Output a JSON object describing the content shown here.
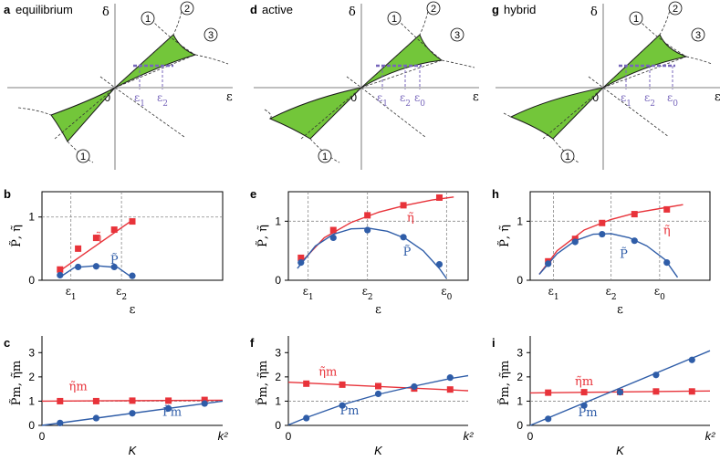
{
  "colors": {
    "red": "#e8333a",
    "blue": "#2f5da8",
    "green": "#73c63a",
    "purple": "#7766bb",
    "grid": "#888888",
    "axis": "#999999"
  },
  "phase_panels": [
    {
      "letter": "a",
      "title": "equilibrium",
      "delta_label": "δ",
      "eps_label": "ε",
      "origin": "0",
      "eps_ticks": [
        "ε1",
        "ε2"
      ],
      "curve_labels": [
        "1",
        "2",
        "3",
        "1"
      ]
    },
    {
      "letter": "d",
      "title": "active",
      "delta_label": "δ",
      "eps_label": "ε",
      "origin": "0",
      "eps_ticks": [
        "ε1",
        "ε2",
        "ε0"
      ],
      "curve_labels": [
        "1",
        "2",
        "3",
        "1"
      ]
    },
    {
      "letter": "g",
      "title": "hybrid",
      "delta_label": "δ",
      "eps_label": "ε",
      "origin": "0",
      "eps_ticks": [
        "ε1",
        "ε2",
        "ε0"
      ],
      "curve_labels": [
        "1",
        "2",
        "3",
        "1"
      ]
    }
  ],
  "chart_data": [
    {
      "panel": "b",
      "type": "scatter",
      "xlabel": "ε",
      "ylabel": "P̃, η̃",
      "ylim": [
        0,
        1.4
      ],
      "yticks": [
        "0",
        "1"
      ],
      "xticks": [
        "ε1",
        "ε2"
      ],
      "xrange": [
        0,
        1
      ],
      "series": [
        {
          "name": "η̃",
          "color": "red",
          "marker": "square",
          "x": [
            0.1,
            0.2,
            0.3,
            0.4,
            0.5
          ],
          "y": [
            0.17,
            0.5,
            0.67,
            0.8,
            0.93
          ],
          "fit_x": [
            0.1,
            0.5
          ],
          "fit_y": [
            0.15,
            0.95
          ]
        },
        {
          "name": "P̃",
          "color": "blue",
          "marker": "circle",
          "x": [
            0.1,
            0.2,
            0.3,
            0.4,
            0.5
          ],
          "y": [
            0.08,
            0.21,
            0.22,
            0.21,
            0.07
          ],
          "fit_x": [
            0.1,
            0.18,
            0.3,
            0.42,
            0.5
          ],
          "fit_y": [
            0.05,
            0.2,
            0.23,
            0.2,
            0.04
          ]
        }
      ]
    },
    {
      "panel": "e",
      "type": "scatter",
      "xlabel": "ε",
      "ylabel": "P̃, η̃",
      "ylim": [
        0,
        1.5
      ],
      "yticks": [
        "0",
        "1"
      ],
      "xticks": [
        "ε1",
        "ε2",
        "ε0"
      ],
      "xrange": [
        0,
        1
      ],
      "series": [
        {
          "name": "η̃",
          "color": "red",
          "marker": "square",
          "x": [
            0.07,
            0.25,
            0.44,
            0.64,
            0.84
          ],
          "y": [
            0.38,
            0.85,
            1.1,
            1.27,
            1.4
          ],
          "fit_x": [
            0.07,
            0.2,
            0.35,
            0.5,
            0.65,
            0.8,
            0.92
          ],
          "fit_y": [
            0.3,
            0.72,
            0.98,
            1.15,
            1.27,
            1.36,
            1.41
          ]
        },
        {
          "name": "P̃",
          "color": "blue",
          "marker": "circle",
          "x": [
            0.07,
            0.25,
            0.44,
            0.64,
            0.84
          ],
          "y": [
            0.3,
            0.72,
            0.85,
            0.73,
            0.27
          ],
          "fit_x": [
            0.05,
            0.15,
            0.25,
            0.35,
            0.45,
            0.55,
            0.65,
            0.75,
            0.84,
            0.88
          ],
          "fit_y": [
            0.2,
            0.58,
            0.78,
            0.87,
            0.88,
            0.83,
            0.71,
            0.5,
            0.2,
            0.03
          ]
        }
      ]
    },
    {
      "panel": "h",
      "type": "scatter",
      "xlabel": "ε",
      "ylabel": "P̃, η̃",
      "ylim": [
        0,
        1.5
      ],
      "yticks": [
        "0",
        "1"
      ],
      "xticks": [
        "ε1",
        "ε2",
        "ε0"
      ],
      "xrange": [
        0,
        1
      ],
      "series": [
        {
          "name": "η̃",
          "color": "red",
          "marker": "square",
          "x": [
            0.1,
            0.25,
            0.4,
            0.58,
            0.76
          ],
          "y": [
            0.32,
            0.7,
            0.97,
            1.12,
            1.2
          ],
          "fit_x": [
            0.05,
            0.15,
            0.3,
            0.45,
            0.6,
            0.75,
            0.85
          ],
          "fit_y": [
            0.1,
            0.5,
            0.85,
            1.03,
            1.15,
            1.23,
            1.28
          ]
        },
        {
          "name": "P̃",
          "color": "blue",
          "marker": "circle",
          "x": [
            0.1,
            0.25,
            0.4,
            0.58,
            0.76
          ],
          "y": [
            0.28,
            0.65,
            0.78,
            0.67,
            0.3
          ],
          "fit_x": [
            0.05,
            0.15,
            0.25,
            0.35,
            0.45,
            0.55,
            0.65,
            0.75,
            0.82
          ],
          "fit_y": [
            0.1,
            0.45,
            0.67,
            0.78,
            0.79,
            0.72,
            0.58,
            0.35,
            0.05
          ]
        }
      ]
    },
    {
      "panel": "c",
      "type": "scatter",
      "xlabel": "K",
      "ylabel": "P̃m, η̃m",
      "ylim": [
        0,
        3.5
      ],
      "yticks": [
        "0",
        "1",
        "2",
        "3"
      ],
      "xticks_left": "0",
      "xticks_right": "k²",
      "xrange": [
        0,
        1
      ],
      "ref_y": 1,
      "series": [
        {
          "name": "η̃m",
          "color": "red",
          "marker": "square",
          "x": [
            0.1,
            0.3,
            0.5,
            0.7,
            0.9
          ],
          "y": [
            1.0,
            1.0,
            1.02,
            1.02,
            1.05
          ],
          "fit_x": [
            0,
            1
          ],
          "fit_y": [
            1.0,
            1.04
          ]
        },
        {
          "name": "P̃m",
          "color": "blue",
          "marker": "circle",
          "x": [
            0.1,
            0.3,
            0.5,
            0.7,
            0.9
          ],
          "y": [
            0.1,
            0.3,
            0.5,
            0.7,
            0.9
          ],
          "fit_x": [
            0,
            1
          ],
          "fit_y": [
            0,
            1.0
          ]
        }
      ]
    },
    {
      "panel": "f",
      "type": "scatter",
      "xlabel": "K",
      "ylabel": "P̃m, η̃m",
      "ylim": [
        0,
        3.5
      ],
      "yticks": [
        "0",
        "1",
        "2",
        "3"
      ],
      "xticks_left": "0",
      "xticks_right": "k²",
      "xrange": [
        0,
        1
      ],
      "ref_y": 1,
      "series": [
        {
          "name": "η̃m",
          "color": "red",
          "marker": "square",
          "x": [
            0.1,
            0.3,
            0.5,
            0.7,
            0.9
          ],
          "y": [
            1.72,
            1.68,
            1.62,
            1.52,
            1.48
          ],
          "fit_x": [
            0,
            1
          ],
          "fit_y": [
            1.78,
            1.43
          ]
        },
        {
          "name": "P̃m",
          "color": "blue",
          "marker": "circle",
          "x": [
            0.1,
            0.3,
            0.5,
            0.7,
            0.9
          ],
          "y": [
            0.3,
            0.82,
            1.3,
            1.6,
            1.97
          ],
          "fit_x": [
            0,
            0.1,
            0.3,
            0.5,
            0.7,
            0.9,
            1.0
          ],
          "fit_y": [
            0.02,
            0.32,
            0.85,
            1.28,
            1.62,
            1.93,
            2.05
          ]
        }
      ]
    },
    {
      "panel": "i",
      "type": "scatter",
      "xlabel": "K",
      "ylabel": "P̃m, η̃m",
      "ylim": [
        0,
        3.5
      ],
      "yticks": [
        "0",
        "1",
        "2",
        "3"
      ],
      "xticks_left": "0",
      "xticks_right": "k²",
      "xrange": [
        0,
        1
      ],
      "ref_y": 1,
      "series": [
        {
          "name": "η̃m",
          "color": "red",
          "marker": "square",
          "x": [
            0.1,
            0.3,
            0.5,
            0.7,
            0.9
          ],
          "y": [
            1.35,
            1.37,
            1.38,
            1.4,
            1.4
          ],
          "fit_x": [
            0,
            1
          ],
          "fit_y": [
            1.34,
            1.42
          ]
        },
        {
          "name": "P̃m",
          "color": "blue",
          "marker": "circle",
          "x": [
            0.1,
            0.3,
            0.5,
            0.7,
            0.9
          ],
          "y": [
            0.27,
            0.82,
            1.37,
            2.08,
            2.7
          ],
          "fit_x": [
            0,
            1
          ],
          "fit_y": [
            0,
            3.08
          ]
        }
      ]
    }
  ]
}
